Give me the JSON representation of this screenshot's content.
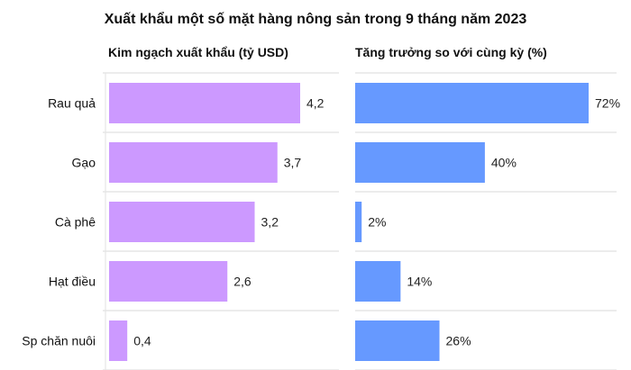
{
  "chart_data": [
    {
      "type": "bar",
      "orientation": "horizontal",
      "title": "Xuất khẩu một số mặt hàng nông sản trong 9 tháng năm 2023",
      "subtitle": "Kim ngạch xuất khẩu (tỷ USD)",
      "categories": [
        "Rau quả",
        "Gạo",
        "Cà phê",
        "Hạt điều",
        "Sp chăn nuôi"
      ],
      "values": [
        4.2,
        3.7,
        3.2,
        2.6,
        0.4
      ],
      "value_labels": [
        "4,2",
        "3,7",
        "3,2",
        "2,6",
        "0,4"
      ],
      "xlim": [
        0,
        4.2
      ],
      "grid": true,
      "color": "#cc99ff"
    },
    {
      "type": "bar",
      "orientation": "horizontal",
      "subtitle": "Tăng trưởng so với cùng kỳ (%)",
      "categories": [
        "Rau quả",
        "Gạo",
        "Cà phê",
        "Hạt điều",
        "Sp chăn nuôi"
      ],
      "values": [
        72,
        40,
        2,
        14,
        26
      ],
      "value_labels": [
        "72%",
        "40%",
        "2%",
        "14%",
        "26%"
      ],
      "xlim": [
        0,
        72
      ],
      "grid": true,
      "color": "#6699ff"
    }
  ]
}
